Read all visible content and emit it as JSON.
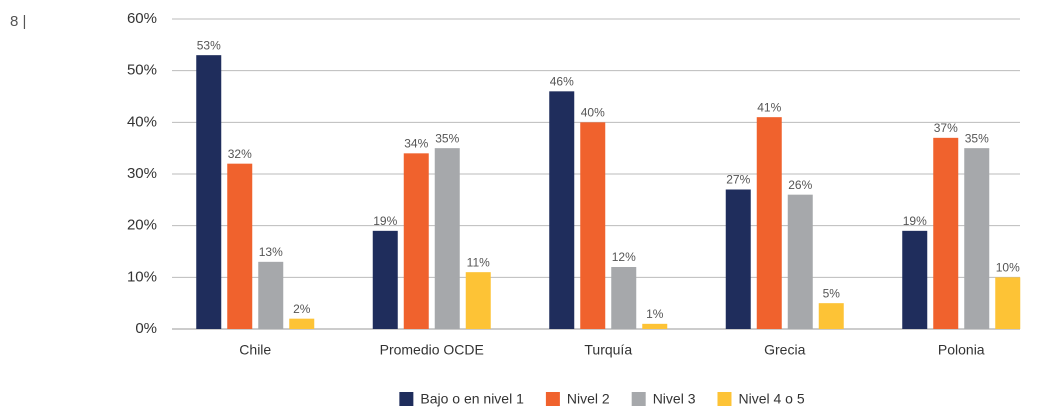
{
  "page_number": "8 |",
  "chart_data": {
    "type": "bar",
    "categories": [
      "Chile",
      "Promedio OCDE",
      "Turquía",
      "Grecia",
      "Polonia"
    ],
    "series": [
      {
        "name": "Bajo o en nivel 1",
        "color": "#1f2d5c",
        "values": [
          53,
          19,
          46,
          27,
          19
        ],
        "value_labels": [
          "53%",
          "19%",
          "46%",
          "27%",
          "19%"
        ]
      },
      {
        "name": "Nivel 2",
        "color": "#f0622d",
        "values": [
          32,
          34,
          40,
          41,
          37
        ],
        "value_labels": [
          "32%",
          "34%",
          "40%",
          "41%",
          "37%"
        ]
      },
      {
        "name": "Nivel 3",
        "color": "#a6a8ab",
        "values": [
          13,
          35,
          12,
          26,
          35
        ],
        "value_labels": [
          "13%",
          "35%",
          "12%",
          "26%",
          "35%"
        ]
      },
      {
        "name": "Nivel 4 o 5",
        "color": "#fdc336",
        "values": [
          2,
          11,
          1,
          5,
          10
        ],
        "value_labels": [
          "2%",
          "11%",
          "1%",
          "5%",
          "10%"
        ]
      }
    ],
    "ylim": [
      0,
      60
    ],
    "yticks": [
      {
        "value": 0,
        "label": "0%"
      },
      {
        "value": 10,
        "label": "10%"
      },
      {
        "value": 20,
        "label": "20%"
      },
      {
        "value": 30,
        "label": "30%"
      },
      {
        "value": 40,
        "label": "40%"
      },
      {
        "value": 50,
        "label": "50%"
      },
      {
        "value": 60,
        "label": "60%"
      }
    ],
    "grid": true,
    "legend": "bottom"
  }
}
